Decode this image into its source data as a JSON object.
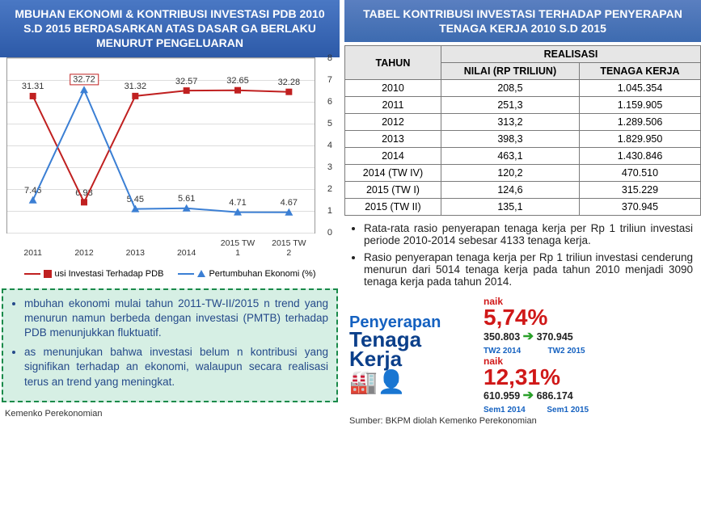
{
  "left": {
    "header": "MBUHAN EKONOMI & KONTRIBUSI INVESTASI PDB 2010 S.D 2015 BERDASARKAN ATAS DASAR GA BERLAKU MENURUT PENGELUARAN",
    "chart": {
      "type": "line",
      "categories": [
        "2011",
        "2012",
        "2013",
        "2014",
        "2015 TW 1",
        "2015 TW 2"
      ],
      "series": [
        {
          "name": "Kontribusi Investasi Terhadap PDB",
          "values": [
            31.31,
            6.98,
            31.32,
            32.57,
            32.65,
            32.28
          ],
          "color": "#c02020",
          "marker": "square",
          "labels": [
            "31.31",
            "6.98",
            "31.32",
            "32.57",
            "32.65",
            "32.28"
          ]
        },
        {
          "name": "Pertumbuhan Ekonomi (%)",
          "values": [
            7.46,
            32.72,
            5.45,
            5.61,
            4.71,
            4.67
          ],
          "color": "#3b7fd4",
          "marker": "triangle",
          "labels": [
            "7.46",
            "32.72",
            "5.45",
            "5.61",
            "4.71",
            "4.67"
          ],
          "boxed_index": 1
        }
      ],
      "ylim": [
        0,
        8
      ],
      "ytick_step": 1,
      "background_color": "#ffffff",
      "grid_color": "#dddddd",
      "line_width": 2,
      "marker_size": 8,
      "label_fontsize": 11
    },
    "legend": {
      "a": "usi Investasi Terhadap PDB",
      "b": "Pertumbuhan Ekonomi (%)"
    },
    "note1": "mbuhan ekonomi mulai tahun 2011-TW-II/2015 n trend yang menurun namun berbeda dengan investasi (PMTB) terhadap PDB menunjukkan fluktuatif.",
    "note2": "as menunjukan bahwa investasi belum n kontribusi yang signifikan terhadap an ekonomi, walaupun secara realisasi terus an trend yang meningkat.",
    "source": "Kemenko Perekonomian"
  },
  "right": {
    "header": "TABEL KONTRIBUSI INVESTASI TERHADAP PENYERAPAN TENAGA KERJA 2010 S.D 2015",
    "table": {
      "col_tahun": "TAHUN",
      "col_realisasi": "REALISASI",
      "col_nilai": "NILAI (RP TRILIUN)",
      "col_tk": "TENAGA KERJA",
      "rows": [
        {
          "tahun": "2010",
          "nilai": "208,5",
          "tk": "1.045.354"
        },
        {
          "tahun": "2011",
          "nilai": "251,3",
          "tk": "1.159.905"
        },
        {
          "tahun": "2012",
          "nilai": "313,2",
          "tk": "1.289.506"
        },
        {
          "tahun": "2013",
          "nilai": "398,3",
          "tk": "1.829.950"
        },
        {
          "tahun": "2014",
          "nilai": "463,1",
          "tk": "1.430.846"
        },
        {
          "tahun": "2014 (TW IV)",
          "nilai": "120,2",
          "tk": "470.510"
        },
        {
          "tahun": "2015 (TW I)",
          "nilai": "124,6",
          "tk": "315.229"
        },
        {
          "tahun": "2015 (TW II)",
          "nilai": "135,1",
          "tk": "370.945"
        }
      ]
    },
    "bullet1": "Rata-rata rasio penyerapan tenaga kerja per Rp 1 triliun investasi periode 2010-2014 sebesar 4133 tenaga kerja.",
    "bullet2": "Rasio penyerapan tenaga kerja per Rp 1 triliun investasi cenderung menurun dari 5014 tenaga kerja pada tahun 2010 menjadi 3090 tenaga kerja pada tahun 2014.",
    "info": {
      "title1": "Penyerapan",
      "title2": "Tenaga",
      "title3": "Kerja",
      "naik": "naik",
      "pct1": "5,74%",
      "row1a": "350.803",
      "row1b": "370.945",
      "row1_label_a": "TW2 2014",
      "row1_label_b": "TW2 2015",
      "pct2": "12,31%",
      "row2a": "610.959",
      "row2b": "686.174",
      "row2_label_a": "Sem1 2014",
      "row2_label_b": "Sem1 2015"
    },
    "source": "Sumber: BKPM diolah Kemenko Perekonomian"
  }
}
